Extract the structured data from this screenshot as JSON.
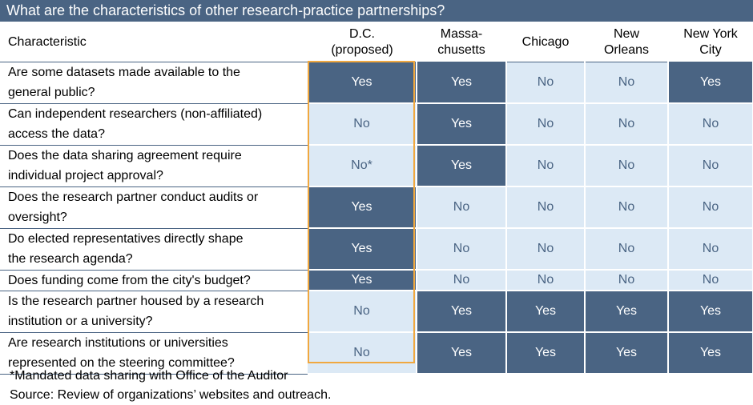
{
  "title": "What are the characteristics of other research-practice partnerships?",
  "headers": {
    "characteristic": "Characteristic",
    "dc_line1": "D.C.",
    "dc_line2": "(proposed)",
    "ma_line1": "Massa-",
    "ma_line2": "chusetts",
    "chicago": "Chicago",
    "no_line1": "New",
    "no_line2": "Orleans",
    "nyc_line1": "New York",
    "nyc_line2": "City"
  },
  "rows": [
    {
      "q1": "Are some datasets made available to the",
      "q2": "general public?",
      "dc": "Yes",
      "ma": "Yes",
      "chi": "No",
      "nola": "No",
      "nyc": "Yes"
    },
    {
      "q1": "Can independent researchers (non-affiliated)",
      "q2": "access the data?",
      "dc": "No",
      "ma": "Yes",
      "chi": "No",
      "nola": "No",
      "nyc": "No"
    },
    {
      "q1": "Does the data sharing agreement require",
      "q2": "individual project approval?",
      "dc": "No*",
      "ma": "Yes",
      "chi": "No",
      "nola": "No",
      "nyc": "No"
    },
    {
      "q1": "Does the research partner conduct audits or",
      "q2": "oversight?",
      "dc": "Yes",
      "ma": "No",
      "chi": "No",
      "nola": "No",
      "nyc": "No"
    },
    {
      "q1": "Do elected representatives directly shape",
      "q2": "the research agenda?",
      "dc": "Yes",
      "ma": "No",
      "chi": "No",
      "nola": "No",
      "nyc": "No"
    },
    {
      "q1": "Does funding come from the city's budget?",
      "q2": "",
      "dc": "Yes",
      "ma": "No",
      "chi": "No",
      "nola": "No",
      "nyc": "No"
    },
    {
      "q1": "Is the research partner housed by a research",
      "q2": "institution or a university?",
      "dc": "No",
      "ma": "Yes",
      "chi": "Yes",
      "nola": "Yes",
      "nyc": "Yes"
    },
    {
      "q1": "Are research institutions or universities",
      "q2": "represented on the steering committee?",
      "dc": "No",
      "ma": "Yes",
      "chi": "Yes",
      "nola": "Yes",
      "nyc": "Yes"
    }
  ],
  "footnote": "*Mandated data sharing with Office of the Auditor",
  "source": "Source: Review of organizations’ websites and outreach.",
  "colors": {
    "yes_fill": "#4a6483",
    "no_fill": "#dce9f5",
    "highlight_border": "#f0a840"
  }
}
